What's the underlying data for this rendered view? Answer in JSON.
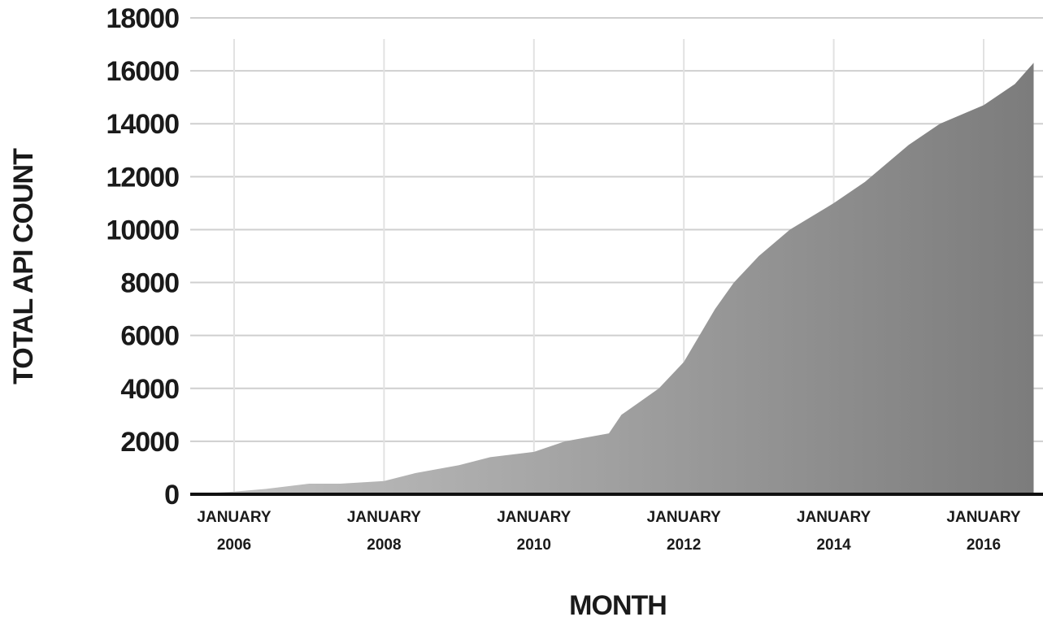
{
  "chart_data": {
    "type": "area",
    "title": "",
    "xlabel": "MONTH",
    "ylabel": "TOTAL API COUNT",
    "x_ticks": [
      {
        "value": "2006-01",
        "line1": "JANUARY",
        "line2": "2006"
      },
      {
        "value": "2008-01",
        "line1": "JANUARY",
        "line2": "2008"
      },
      {
        "value": "2010-01",
        "line1": "JANUARY",
        "line2": "2010"
      },
      {
        "value": "2012-01",
        "line1": "JANUARY",
        "line2": "2012"
      },
      {
        "value": "2014-01",
        "line1": "JANUARY",
        "line2": "2014"
      },
      {
        "value": "2016-01",
        "line1": "JANUARY",
        "line2": "2016"
      }
    ],
    "y_ticks": [
      "0",
      "2000",
      "4000",
      "6000",
      "8000",
      "10000",
      "12000",
      "14000",
      "16000",
      "18000"
    ],
    "ylim": [
      0,
      18000
    ],
    "xlim": [
      "2005-06",
      "2016-09"
    ],
    "grid": true,
    "colors": {
      "fill_light": "#c4c4c4",
      "fill_dark": "#7c7c7c",
      "gridline": "#cfcfcf",
      "baseline": "#111111",
      "text": "#1a1a1a"
    },
    "x": [
      "2005-06",
      "2006-01",
      "2006-06",
      "2007-01",
      "2007-06",
      "2008-01",
      "2008-06",
      "2009-01",
      "2009-06",
      "2010-01",
      "2010-06",
      "2011-01",
      "2011-03",
      "2011-06",
      "2011-09",
      "2012-01",
      "2012-06",
      "2012-09",
      "2013-01",
      "2013-06",
      "2014-01",
      "2014-06",
      "2015-01",
      "2015-06",
      "2016-01",
      "2016-06",
      "2016-09"
    ],
    "y": [
      0,
      100,
      200,
      400,
      400,
      500,
      800,
      1100,
      1400,
      1600,
      2000,
      2300,
      3000,
      3500,
      4000,
      5000,
      7000,
      8000,
      9000,
      10000,
      11000,
      11800,
      13200,
      14000,
      14700,
      15500,
      16300
    ]
  }
}
